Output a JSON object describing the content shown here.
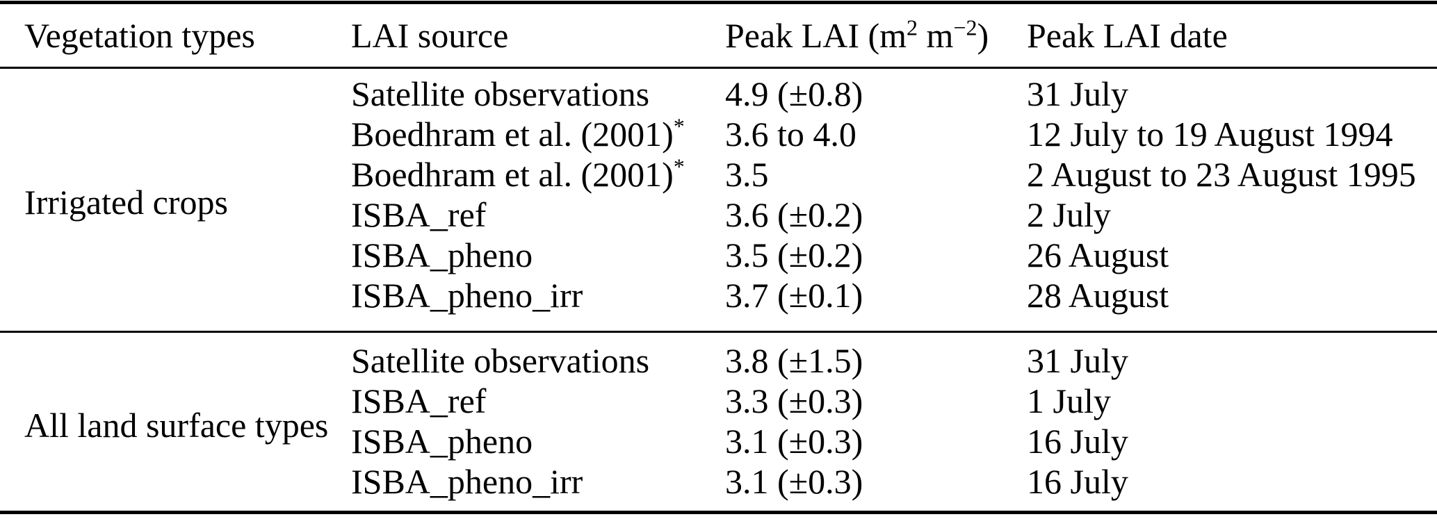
{
  "table": {
    "headers": {
      "vegetation_types": "Vegetation types",
      "lai_source": "LAI source",
      "peak_lai_prefix": "Peak LAI (m",
      "peak_lai_sup1": "2",
      "peak_lai_mid": " m",
      "peak_lai_sup2": "−2",
      "peak_lai_suffix": ")",
      "peak_lai_date": "Peak LAI date"
    },
    "sections": [
      {
        "vegetation_type": "Irrigated crops",
        "rows": [
          {
            "source": "Satellite observations",
            "source_sup": "",
            "peak_lai": "4.9 (±0.8)",
            "peak_date": "31 July"
          },
          {
            "source": "Boedhram et al. (2001)",
            "source_sup": "*",
            "peak_lai": "3.6 to 4.0",
            "peak_date": "12 July to 19 August 1994"
          },
          {
            "source": "Boedhram et al. (2001)",
            "source_sup": "*",
            "peak_lai": "3.5",
            "peak_date": "2 August to 23 August 1995"
          },
          {
            "source": "ISBA_ref",
            "source_sup": "",
            "peak_lai": "3.6 (±0.2)",
            "peak_date": "2 July"
          },
          {
            "source": "ISBA_pheno",
            "source_sup": "",
            "peak_lai": "3.5 (±0.2)",
            "peak_date": "26 August"
          },
          {
            "source": "ISBA_pheno_irr",
            "source_sup": "",
            "peak_lai": "3.7 (±0.1)",
            "peak_date": "28 August"
          }
        ]
      },
      {
        "vegetation_type": "All land surface types",
        "rows": [
          {
            "source": "Satellite observations",
            "source_sup": "",
            "peak_lai": "3.8 (±1.5)",
            "peak_date": "31 July"
          },
          {
            "source": "ISBA_ref",
            "source_sup": "",
            "peak_lai": "3.3 (±0.3)",
            "peak_date": "1 July"
          },
          {
            "source": "ISBA_pheno",
            "source_sup": "",
            "peak_lai": "3.1 (±0.3)",
            "peak_date": "16 July"
          },
          {
            "source": "ISBA_pheno_irr",
            "source_sup": "",
            "peak_lai": "3.1 (±0.3)",
            "peak_date": "16 July"
          }
        ]
      }
    ]
  },
  "colors": {
    "text": "#000000",
    "background": "#ffffff",
    "rule": "#000000"
  },
  "chart_data": {
    "type": "table",
    "title": "",
    "columns": [
      "Vegetation types",
      "LAI source",
      "Peak LAI (m2 m−2)",
      "Peak LAI date"
    ],
    "rows": [
      [
        "Irrigated crops",
        "Satellite observations",
        "4.9 (±0.8)",
        "31 July"
      ],
      [
        "Irrigated crops",
        "Boedhram et al. (2001)*",
        "3.6 to 4.0",
        "12 July to 19 August 1994"
      ],
      [
        "Irrigated crops",
        "Boedhram et al. (2001)*",
        "3.5",
        "2 August to 23 August 1995"
      ],
      [
        "Irrigated crops",
        "ISBA_ref",
        "3.6 (±0.2)",
        "2 July"
      ],
      [
        "Irrigated crops",
        "ISBA_pheno",
        "3.5 (±0.2)",
        "26 August"
      ],
      [
        "Irrigated crops",
        "ISBA_pheno_irr",
        "3.7 (±0.1)",
        "28 August"
      ],
      [
        "All land surface types",
        "Satellite observations",
        "3.8 (±1.5)",
        "31 July"
      ],
      [
        "All land surface types",
        "ISBA_ref",
        "3.3 (±0.3)",
        "1 July"
      ],
      [
        "All land surface types",
        "ISBA_pheno",
        "3.1 (±0.3)",
        "16 July"
      ],
      [
        "All land surface types",
        "ISBA_pheno_irr",
        "3.1 (±0.3)",
        "16 July"
      ]
    ]
  }
}
